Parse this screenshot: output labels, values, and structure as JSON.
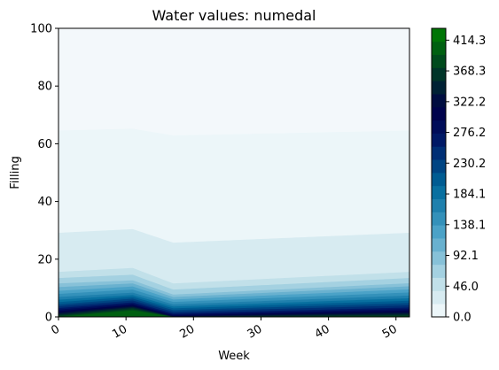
{
  "chart_data": {
    "type": "heatmap",
    "subtype": "filled-contour",
    "title": "Water values: numedal",
    "xlabel": "Week",
    "ylabel": "Filling",
    "xlim": [
      0,
      52
    ],
    "ylim": [
      0,
      100
    ],
    "xticks": [
      0,
      10,
      20,
      30,
      40,
      50
    ],
    "yticks": [
      0,
      20,
      40,
      60,
      80,
      100
    ],
    "xtick_rotation_deg": 30,
    "colormap": "ocean_r",
    "colorbar": {
      "min": 0.0,
      "max": 432.0,
      "levels": 22,
      "ticks": [
        "0.0",
        "46.0",
        "92.1",
        "138.1",
        "184.1",
        "230.2",
        "276.2",
        "322.2",
        "368.3",
        "414.3"
      ],
      "tick_values": [
        0.0,
        46.0,
        92.1,
        138.1,
        184.1,
        230.2,
        276.2,
        322.2,
        368.3,
        414.3
      ]
    },
    "contour_profile": {
      "description_unit": "filling level (0-100) at which water value crosses each band, by week",
      "weeks": [
        0,
        11,
        17,
        52
      ],
      "boundary_46": [
        17,
        18.5,
        13,
        17
      ],
      "boundary_92": [
        12,
        13,
        8,
        12
      ],
      "boundary_138": [
        9,
        10.5,
        6,
        9.5
      ],
      "boundary_184": [
        6.5,
        8,
        4,
        7
      ],
      "boundary_230": [
        4.5,
        6.5,
        2.5,
        5
      ],
      "boundary_276": [
        3,
        5,
        1.2,
        3.2
      ],
      "boundary_322": [
        1.8,
        4,
        0.4,
        2
      ],
      "boundary_368": [
        0.8,
        3.2,
        0,
        0.9
      ],
      "boundary_414": [
        0,
        2.2,
        0,
        0
      ]
    }
  }
}
